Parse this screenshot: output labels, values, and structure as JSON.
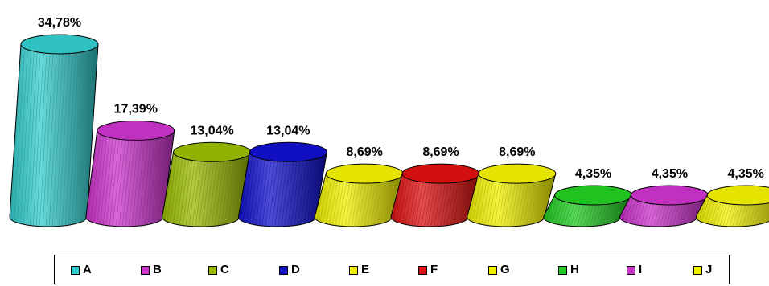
{
  "chart_data": {
    "type": "bar",
    "categories": [
      "A",
      "B",
      "C",
      "D",
      "E",
      "F",
      "G",
      "H",
      "I",
      "J"
    ],
    "values": [
      34.78,
      17.39,
      13.04,
      13.04,
      8.69,
      8.69,
      8.69,
      4.35,
      4.35,
      4.35
    ],
    "data_labels": [
      "34,78%",
      "17,39%",
      "13,04%",
      "13,04%",
      "8,69%",
      "8,69%",
      "8,69%",
      "4,35%",
      "4,35%",
      "4,35%"
    ],
    "colors": [
      "#33cccc",
      "#cc33cc",
      "#99bb00",
      "#1111cc",
      "#f0f000",
      "#dd1111",
      "#f0f000",
      "#22cc22",
      "#cc33cc",
      "#f0f000"
    ],
    "shape": "3d-cylinder",
    "grid": false,
    "legend_position": "bottom",
    "title": "",
    "xlabel": "",
    "ylabel": ""
  },
  "legend": {
    "items": [
      {
        "label": "A",
        "color": "#33cccc"
      },
      {
        "label": "B",
        "color": "#cc33cc"
      },
      {
        "label": "C",
        "color": "#99bb00"
      },
      {
        "label": "D",
        "color": "#1111cc"
      },
      {
        "label": "E",
        "color": "#f0f000"
      },
      {
        "label": "F",
        "color": "#dd1111"
      },
      {
        "label": "G",
        "color": "#f0f000"
      },
      {
        "label": "H",
        "color": "#22cc22"
      },
      {
        "label": "I",
        "color": "#cc33cc"
      },
      {
        "label": "J",
        "color": "#f0f000"
      }
    ]
  }
}
